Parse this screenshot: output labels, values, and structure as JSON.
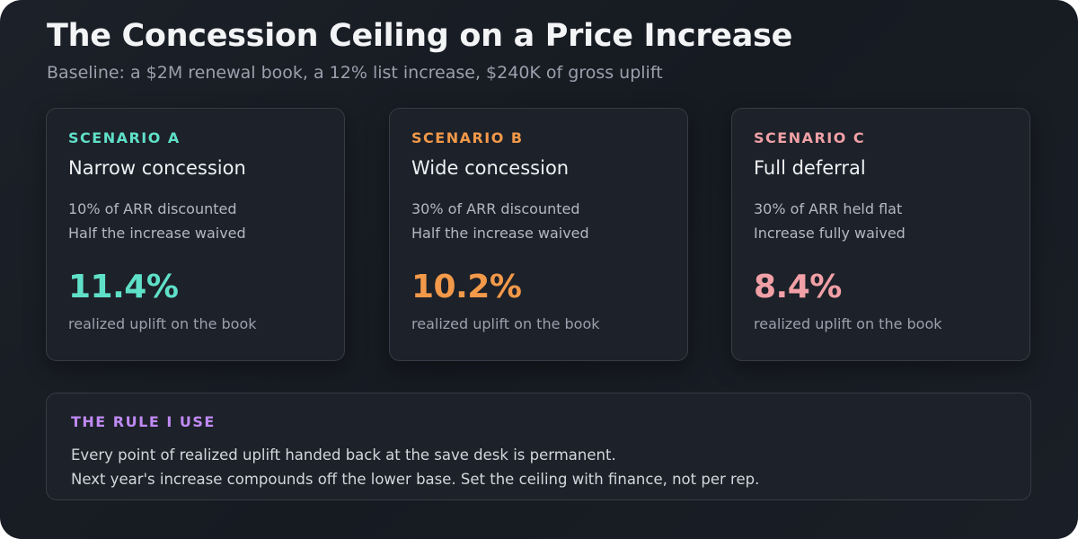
{
  "header": {
    "title": "The Concession Ceiling on a Price Increase",
    "subtitle": "Baseline: a $2M renewal book, a 12% list increase, $240K of gross uplift"
  },
  "scenarios": [
    {
      "tag": "SCENARIO A",
      "heading": "Narrow concession",
      "line1": "10% of ARR discounted",
      "line2": "Half the increase waived",
      "value": "11.4%",
      "caption": "realized uplift on the book",
      "accent": "#5fe0c8"
    },
    {
      "tag": "SCENARIO B",
      "heading": "Wide concession",
      "line1": "30% of ARR discounted",
      "line2": "Half the increase waived",
      "value": "10.2%",
      "caption": "realized uplift on the book",
      "accent": "#f2994a"
    },
    {
      "tag": "SCENARIO C",
      "heading": "Full deferral",
      "line1": "30% of ARR held flat",
      "line2": "Increase fully waived",
      "value": "8.4%",
      "caption": "realized uplift on the book",
      "accent": "#f0a0a6"
    }
  ],
  "rule": {
    "tag": "THE RULE I USE",
    "text1": "Every point of realized uplift handed back at the save desk is permanent.",
    "text2": "Next year's increase compounds off the lower base. Set the ceiling with finance, not per rep.",
    "accent": "#c08af5"
  }
}
